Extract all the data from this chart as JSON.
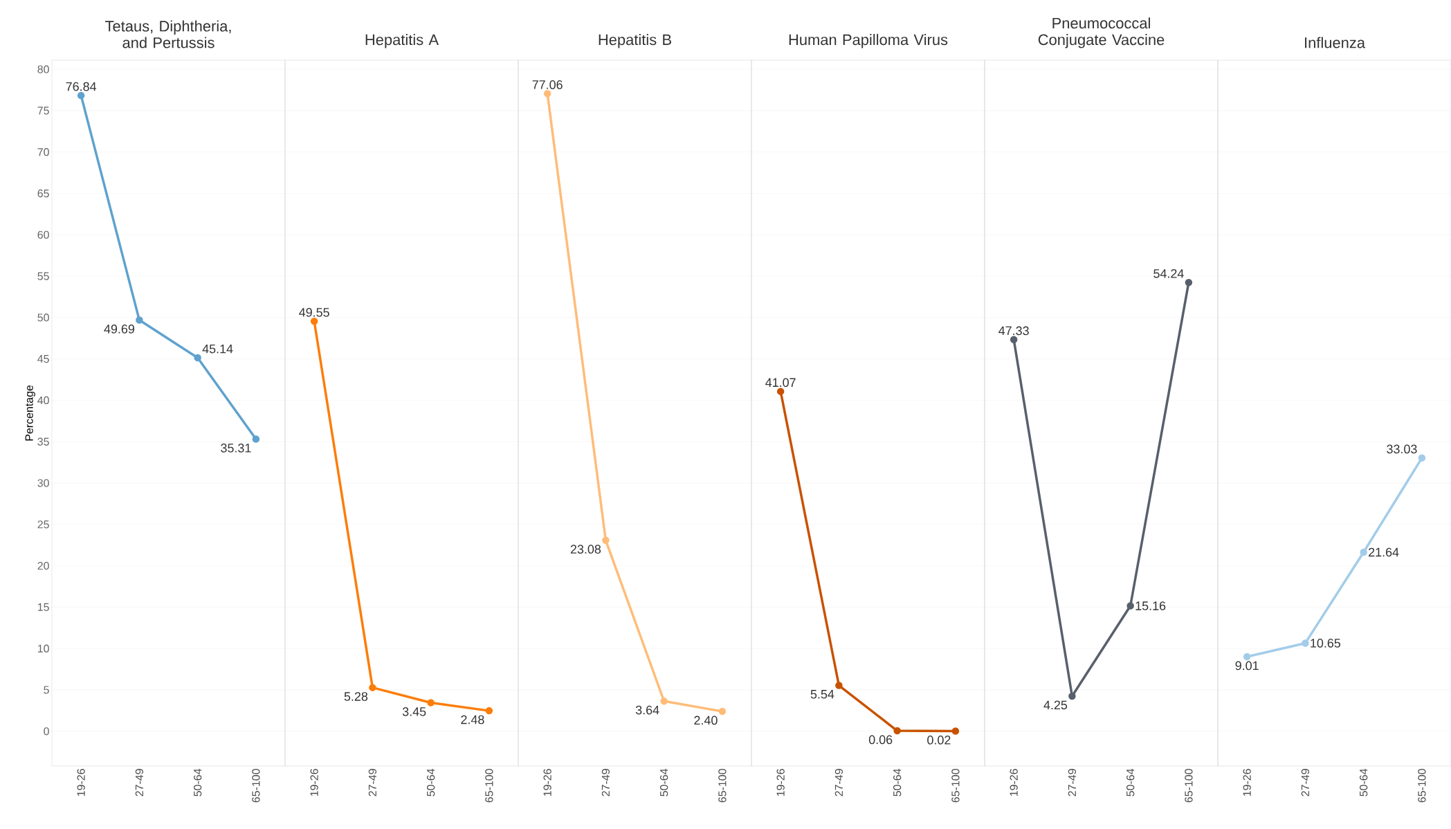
{
  "chart_data": [
    {
      "type": "line",
      "title": "Tetaus, Diphtheria, and Pertussis",
      "ylabel": "Percentage",
      "categories": [
        "19-26",
        "27-49",
        "50-64",
        "65-100"
      ],
      "values": [
        76.84,
        49.69,
        45.14,
        35.31
      ],
      "value_labels": [
        "76.84",
        "49.69",
        "45.14",
        "35.31"
      ],
      "color": "#5fa2ce",
      "ylim": [
        -4.2,
        81.1
      ],
      "yticks": [
        0,
        5,
        10,
        15,
        20,
        25,
        30,
        35,
        40,
        45,
        50,
        55,
        60,
        65,
        70,
        75,
        80
      ],
      "grid": "y",
      "marker": "circle"
    },
    {
      "type": "line",
      "title": "Hepatitis A",
      "categories": [
        "19-26",
        "27-49",
        "50-64",
        "65-100"
      ],
      "values": [
        49.55,
        5.28,
        3.45,
        2.48
      ],
      "value_labels": [
        "49.55",
        "5.28",
        "3.45",
        "2.48"
      ],
      "color": "#fc7d0b",
      "ylim": [
        -4.2,
        81.1
      ],
      "yticks": [
        0,
        5,
        10,
        15,
        20,
        25,
        30,
        35,
        40,
        45,
        50,
        55,
        60,
        65,
        70,
        75,
        80
      ],
      "grid": "y",
      "marker": "circle",
      "tick_labels": "x"
    },
    {
      "type": "line",
      "title": "Hepatitis B",
      "categories": [
        "19-26",
        "27-49",
        "50-64",
        "65-100"
      ],
      "values": [
        77.06,
        23.08,
        3.64,
        2.4
      ],
      "value_labels": [
        "77.06",
        "23.08",
        "3.64",
        "2.40"
      ],
      "color": "#ffbc79",
      "ylim": [
        -4.2,
        81.1
      ],
      "yticks": [
        0,
        5,
        10,
        15,
        20,
        25,
        30,
        35,
        40,
        45,
        50,
        55,
        60,
        65,
        70,
        75,
        80
      ],
      "grid": "y",
      "marker": "circle",
      "tick_labels": "x"
    },
    {
      "type": "line",
      "title": "Human Papilloma Virus",
      "categories": [
        "19-26",
        "27-49",
        "50-64",
        "65-100"
      ],
      "values": [
        41.07,
        5.54,
        0.06,
        0.02
      ],
      "value_labels": [
        "41.07",
        "5.54",
        "0.06",
        "0.02"
      ],
      "color": "#c85200",
      "ylim": [
        -4.2,
        81.1
      ],
      "yticks": [
        0,
        5,
        10,
        15,
        20,
        25,
        30,
        35,
        40,
        45,
        50,
        55,
        60,
        65,
        70,
        75,
        80
      ],
      "grid": "y",
      "marker": "circle",
      "tick_labels": "x"
    },
    {
      "type": "line",
      "title": "Pneumococcal Conjugate Vaccine",
      "categories": [
        "19-26",
        "27-49",
        "50-64",
        "65-100"
      ],
      "values": [
        47.33,
        4.25,
        15.16,
        54.24
      ],
      "value_labels": [
        "47.33",
        "4.25",
        "15.16",
        "54.24"
      ],
      "color": "#57606c",
      "ylim": [
        -4.2,
        81.1
      ],
      "yticks": [
        0,
        5,
        10,
        15,
        20,
        25,
        30,
        35,
        40,
        45,
        50,
        55,
        60,
        65,
        70,
        75,
        80
      ],
      "grid": "y",
      "marker": "circle",
      "tick_labels": "x"
    },
    {
      "type": "line",
      "title": "Influenza",
      "categories": [
        "19-26",
        "27-49",
        "50-64",
        "65-100"
      ],
      "values": [
        9.01,
        10.65,
        21.64,
        33.03
      ],
      "value_labels": [
        "9.01",
        "10.65",
        "21.64",
        "33.03"
      ],
      "color": "#a3cce9",
      "ylim": [
        -4.2,
        81.1
      ],
      "yticks": [
        0,
        5,
        10,
        15,
        20,
        25,
        30,
        35,
        40,
        45,
        50,
        55,
        60,
        65,
        70,
        75,
        80
      ],
      "grid": "y",
      "marker": "circle",
      "tick_labels": "x"
    }
  ]
}
